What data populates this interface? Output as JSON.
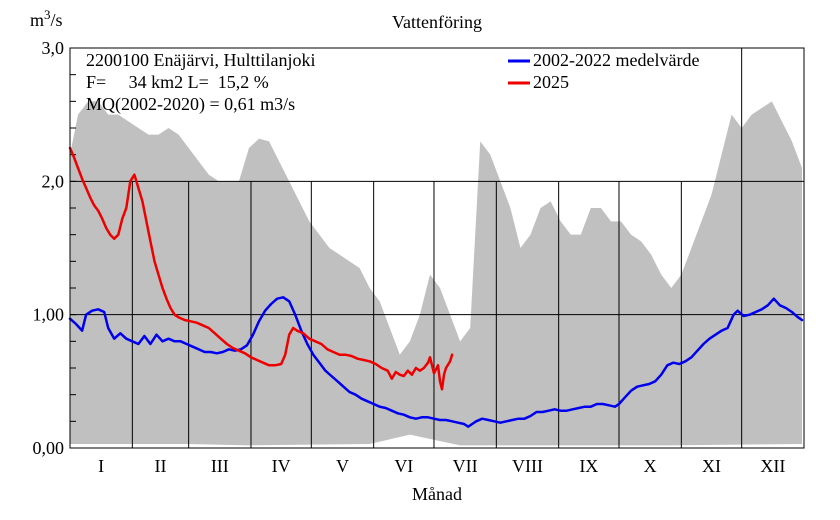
{
  "chart_data": {
    "type": "area",
    "title": "Vattenföring",
    "ylabel": "m3/s",
    "xlabel": "Månad",
    "ylim": [
      0,
      3.0
    ],
    "yticks": [
      {
        "value": 0,
        "label": "0,00"
      },
      {
        "value": 1,
        "label": "1,00"
      },
      {
        "value": 2,
        "label": "2,0"
      },
      {
        "value": 3,
        "label": "3,0"
      }
    ],
    "months": [
      "I",
      "II",
      "III",
      "IV",
      "V",
      "VI",
      "VII",
      "VIII",
      "IX",
      "X",
      "XI",
      "XII"
    ],
    "grid": true,
    "legend_position": "top-right",
    "info_lines": [
      "2200100 Enäjärvi, Hulttilanjoki",
      "F=     34 km2 L=  15,2 %",
      "MQ(2002-2020) = 0,61 m3/s"
    ],
    "envelope": {
      "color": "#c0c0c0",
      "max": [
        [
          1,
          2.2
        ],
        [
          5,
          2.5
        ],
        [
          10,
          2.6
        ],
        [
          15,
          2.6
        ],
        [
          20,
          2.5
        ],
        [
          25,
          2.5
        ],
        [
          30,
          2.45
        ],
        [
          35,
          2.4
        ],
        [
          40,
          2.35
        ],
        [
          45,
          2.35
        ],
        [
          50,
          2.4
        ],
        [
          55,
          2.35
        ],
        [
          60,
          2.25
        ],
        [
          65,
          2.15
        ],
        [
          70,
          2.05
        ],
        [
          75,
          2.0
        ],
        [
          80,
          2.0
        ],
        [
          85,
          2.0
        ],
        [
          90,
          2.25
        ],
        [
          95,
          2.32
        ],
        [
          100,
          2.3
        ],
        [
          105,
          2.15
        ],
        [
          110,
          2.0
        ],
        [
          115,
          1.85
        ],
        [
          120,
          1.7
        ],
        [
          125,
          1.6
        ],
        [
          130,
          1.5
        ],
        [
          135,
          1.45
        ],
        [
          140,
          1.4
        ],
        [
          145,
          1.35
        ],
        [
          150,
          1.2
        ],
        [
          155,
          1.1
        ],
        [
          160,
          0.9
        ],
        [
          165,
          0.7
        ],
        [
          170,
          0.8
        ],
        [
          175,
          1.0
        ],
        [
          180,
          1.3
        ],
        [
          185,
          1.2
        ],
        [
          190,
          1.0
        ],
        [
          195,
          0.8
        ],
        [
          200,
          0.9
        ],
        [
          205,
          2.3
        ],
        [
          210,
          2.2
        ],
        [
          215,
          2.0
        ],
        [
          220,
          1.8
        ],
        [
          225,
          1.5
        ],
        [
          230,
          1.6
        ],
        [
          235,
          1.8
        ],
        [
          240,
          1.85
        ],
        [
          245,
          1.7
        ],
        [
          250,
          1.6
        ],
        [
          255,
          1.6
        ],
        [
          260,
          1.8
        ],
        [
          265,
          1.8
        ],
        [
          270,
          1.7
        ],
        [
          275,
          1.7
        ],
        [
          280,
          1.6
        ],
        [
          285,
          1.55
        ],
        [
          290,
          1.45
        ],
        [
          295,
          1.3
        ],
        [
          300,
          1.2
        ],
        [
          305,
          1.3
        ],
        [
          310,
          1.5
        ],
        [
          315,
          1.7
        ],
        [
          320,
          1.9
        ],
        [
          325,
          2.2
        ],
        [
          330,
          2.5
        ],
        [
          335,
          2.4
        ],
        [
          340,
          2.5
        ],
        [
          345,
          2.55
        ],
        [
          350,
          2.6
        ],
        [
          355,
          2.45
        ],
        [
          360,
          2.3
        ],
        [
          365,
          2.1
        ]
      ],
      "min": [
        [
          1,
          0.03
        ],
        [
          60,
          0.03
        ],
        [
          90,
          0.02
        ],
        [
          150,
          0.03
        ],
        [
          170,
          0.1
        ],
        [
          195,
          0.02
        ],
        [
          240,
          0.02
        ],
        [
          300,
          0.02
        ],
        [
          365,
          0.03
        ]
      ]
    },
    "series": [
      {
        "name": "2002-2022 medelvärde",
        "color": "#0000ee",
        "points": [
          [
            1,
            0.97
          ],
          [
            4,
            0.93
          ],
          [
            7,
            0.88
          ],
          [
            9,
            1.0
          ],
          [
            12,
            1.03
          ],
          [
            15,
            1.04
          ],
          [
            18,
            1.02
          ],
          [
            20,
            0.9
          ],
          [
            23,
            0.82
          ],
          [
            26,
            0.86
          ],
          [
            29,
            0.82
          ],
          [
            32,
            0.8
          ],
          [
            35,
            0.78
          ],
          [
            38,
            0.84
          ],
          [
            41,
            0.78
          ],
          [
            44,
            0.85
          ],
          [
            47,
            0.8
          ],
          [
            50,
            0.82
          ],
          [
            53,
            0.8
          ],
          [
            56,
            0.8
          ],
          [
            59,
            0.78
          ],
          [
            62,
            0.76
          ],
          [
            65,
            0.74
          ],
          [
            68,
            0.72
          ],
          [
            71,
            0.72
          ],
          [
            74,
            0.71
          ],
          [
            77,
            0.72
          ],
          [
            80,
            0.74
          ],
          [
            83,
            0.73
          ],
          [
            86,
            0.74
          ],
          [
            89,
            0.77
          ],
          [
            92,
            0.85
          ],
          [
            95,
            0.95
          ],
          [
            98,
            1.03
          ],
          [
            101,
            1.08
          ],
          [
            104,
            1.12
          ],
          [
            107,
            1.13
          ],
          [
            110,
            1.1
          ],
          [
            113,
            1.0
          ],
          [
            116,
            0.88
          ],
          [
            119,
            0.78
          ],
          [
            122,
            0.7
          ],
          [
            125,
            0.64
          ],
          [
            128,
            0.58
          ],
          [
            131,
            0.54
          ],
          [
            134,
            0.5
          ],
          [
            137,
            0.46
          ],
          [
            140,
            0.42
          ],
          [
            143,
            0.4
          ],
          [
            146,
            0.37
          ],
          [
            149,
            0.35
          ],
          [
            152,
            0.33
          ],
          [
            155,
            0.31
          ],
          [
            158,
            0.3
          ],
          [
            161,
            0.28
          ],
          [
            164,
            0.26
          ],
          [
            167,
            0.25
          ],
          [
            170,
            0.23
          ],
          [
            173,
            0.22
          ],
          [
            176,
            0.23
          ],
          [
            179,
            0.23
          ],
          [
            182,
            0.22
          ],
          [
            185,
            0.21
          ],
          [
            188,
            0.21
          ],
          [
            191,
            0.2
          ],
          [
            194,
            0.19
          ],
          [
            197,
            0.18
          ],
          [
            199,
            0.16
          ],
          [
            201,
            0.18
          ],
          [
            203,
            0.2
          ],
          [
            206,
            0.22
          ],
          [
            209,
            0.21
          ],
          [
            212,
            0.2
          ],
          [
            215,
            0.19
          ],
          [
            218,
            0.2
          ],
          [
            221,
            0.21
          ],
          [
            224,
            0.22
          ],
          [
            227,
            0.22
          ],
          [
            230,
            0.24
          ],
          [
            233,
            0.27
          ],
          [
            236,
            0.27
          ],
          [
            239,
            0.28
          ],
          [
            242,
            0.29
          ],
          [
            245,
            0.28
          ],
          [
            248,
            0.28
          ],
          [
            251,
            0.29
          ],
          [
            254,
            0.3
          ],
          [
            257,
            0.31
          ],
          [
            260,
            0.31
          ],
          [
            263,
            0.33
          ],
          [
            266,
            0.33
          ],
          [
            269,
            0.32
          ],
          [
            272,
            0.31
          ],
          [
            274,
            0.33
          ],
          [
            277,
            0.38
          ],
          [
            280,
            0.43
          ],
          [
            283,
            0.46
          ],
          [
            286,
            0.47
          ],
          [
            289,
            0.48
          ],
          [
            292,
            0.5
          ],
          [
            295,
            0.55
          ],
          [
            298,
            0.62
          ],
          [
            301,
            0.64
          ],
          [
            304,
            0.63
          ],
          [
            307,
            0.65
          ],
          [
            310,
            0.68
          ],
          [
            313,
            0.73
          ],
          [
            316,
            0.78
          ],
          [
            319,
            0.82
          ],
          [
            322,
            0.85
          ],
          [
            325,
            0.88
          ],
          [
            328,
            0.9
          ],
          [
            331,
            1.0
          ],
          [
            333,
            1.03
          ],
          [
            336,
            0.99
          ],
          [
            339,
            1.0
          ],
          [
            342,
            1.02
          ],
          [
            345,
            1.04
          ],
          [
            348,
            1.07
          ],
          [
            351,
            1.12
          ],
          [
            354,
            1.07
          ],
          [
            357,
            1.05
          ],
          [
            360,
            1.02
          ],
          [
            363,
            0.98
          ],
          [
            365,
            0.96
          ]
        ]
      },
      {
        "name": "2025",
        "color": "#ee0000",
        "points": [
          [
            1,
            2.25
          ],
          [
            3,
            2.18
          ],
          [
            5,
            2.1
          ],
          [
            7,
            2.02
          ],
          [
            9,
            1.95
          ],
          [
            11,
            1.88
          ],
          [
            13,
            1.82
          ],
          [
            15,
            1.78
          ],
          [
            17,
            1.72
          ],
          [
            19,
            1.65
          ],
          [
            21,
            1.6
          ],
          [
            23,
            1.57
          ],
          [
            25,
            1.6
          ],
          [
            27,
            1.72
          ],
          [
            29,
            1.8
          ],
          [
            31,
            2.0
          ],
          [
            33,
            2.05
          ],
          [
            35,
            1.95
          ],
          [
            37,
            1.85
          ],
          [
            39,
            1.7
          ],
          [
            41,
            1.55
          ],
          [
            43,
            1.4
          ],
          [
            45,
            1.3
          ],
          [
            47,
            1.2
          ],
          [
            49,
            1.12
          ],
          [
            51,
            1.05
          ],
          [
            53,
            1.0
          ],
          [
            55,
            0.98
          ],
          [
            58,
            0.96
          ],
          [
            61,
            0.95
          ],
          [
            64,
            0.94
          ],
          [
            67,
            0.92
          ],
          [
            70,
            0.9
          ],
          [
            73,
            0.86
          ],
          [
            76,
            0.82
          ],
          [
            79,
            0.78
          ],
          [
            82,
            0.75
          ],
          [
            85,
            0.73
          ],
          [
            88,
            0.71
          ],
          [
            91,
            0.68
          ],
          [
            94,
            0.66
          ],
          [
            97,
            0.64
          ],
          [
            100,
            0.62
          ],
          [
            103,
            0.62
          ],
          [
            106,
            0.63
          ],
          [
            108,
            0.7
          ],
          [
            110,
            0.85
          ],
          [
            112,
            0.9
          ],
          [
            114,
            0.88
          ],
          [
            117,
            0.86
          ],
          [
            120,
            0.82
          ],
          [
            123,
            0.8
          ],
          [
            126,
            0.78
          ],
          [
            129,
            0.74
          ],
          [
            132,
            0.72
          ],
          [
            135,
            0.7
          ],
          [
            138,
            0.7
          ],
          [
            141,
            0.69
          ],
          [
            144,
            0.67
          ],
          [
            147,
            0.66
          ],
          [
            150,
            0.65
          ],
          [
            153,
            0.63
          ],
          [
            156,
            0.6
          ],
          [
            159,
            0.58
          ],
          [
            161,
            0.52
          ],
          [
            163,
            0.57
          ],
          [
            165,
            0.55
          ],
          [
            167,
            0.54
          ],
          [
            169,
            0.58
          ],
          [
            171,
            0.55
          ],
          [
            173,
            0.6
          ],
          [
            175,
            0.58
          ],
          [
            177,
            0.6
          ],
          [
            179,
            0.64
          ],
          [
            180,
            0.68
          ],
          [
            182,
            0.56
          ],
          [
            184,
            0.62
          ],
          [
            185,
            0.5
          ],
          [
            186,
            0.44
          ],
          [
            187,
            0.55
          ],
          [
            188,
            0.6
          ],
          [
            190,
            0.65
          ],
          [
            191,
            0.7
          ]
        ]
      }
    ]
  }
}
